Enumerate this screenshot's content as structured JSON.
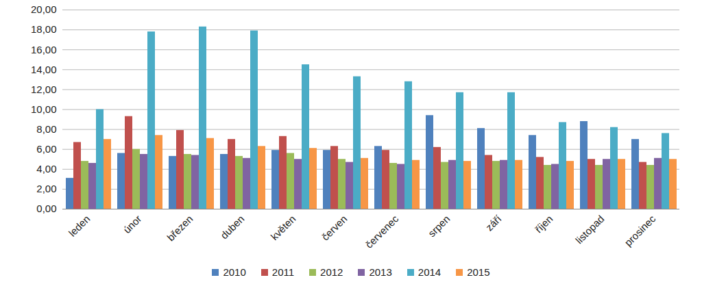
{
  "chart_data": {
    "type": "bar",
    "categories": [
      "leden",
      "únor",
      "březen",
      "duben",
      "květen",
      "červen",
      "červenec",
      "srpen",
      "září",
      "říjen",
      "listopad",
      "prosinec"
    ],
    "series": [
      {
        "name": "2010",
        "color": "#4f81bd",
        "values": [
          3.1,
          5.6,
          5.3,
          5.5,
          5.9,
          5.9,
          6.3,
          9.4,
          8.1,
          7.4,
          8.8,
          7.0
        ]
      },
      {
        "name": "2011",
        "color": "#c0504d",
        "values": [
          6.7,
          9.3,
          7.9,
          7.0,
          7.3,
          6.3,
          5.9,
          6.2,
          5.4,
          5.2,
          5.0,
          4.7
        ]
      },
      {
        "name": "2012",
        "color": "#9bbb59",
        "values": [
          4.8,
          6.0,
          5.5,
          5.3,
          5.6,
          5.0,
          4.6,
          4.7,
          4.8,
          4.4,
          4.4,
          4.4
        ]
      },
      {
        "name": "2013",
        "color": "#8064a2",
        "values": [
          4.6,
          5.5,
          5.4,
          5.1,
          5.0,
          4.7,
          4.5,
          4.9,
          4.9,
          4.5,
          5.0,
          5.1
        ]
      },
      {
        "name": "2014",
        "color": "#4bacc6",
        "values": [
          10.0,
          17.8,
          18.3,
          17.9,
          14.5,
          13.3,
          12.8,
          11.7,
          11.7,
          8.7,
          8.2,
          7.6
        ]
      },
      {
        "name": "2015",
        "color": "#f79646",
        "values": [
          7.0,
          7.4,
          7.1,
          6.3,
          6.1,
          5.1,
          4.9,
          4.8,
          4.9,
          4.8,
          5.0,
          5.0
        ]
      }
    ],
    "ylim": [
      0,
      20
    ],
    "yticks": [
      {
        "value": 0,
        "label": "0,00"
      },
      {
        "value": 2,
        "label": "2,00"
      },
      {
        "value": 4,
        "label": "4,00"
      },
      {
        "value": 6,
        "label": "6,00"
      },
      {
        "value": 8,
        "label": "8,00"
      },
      {
        "value": 10,
        "label": "10,00"
      },
      {
        "value": 12,
        "label": "12,00"
      },
      {
        "value": 14,
        "label": "14,00"
      },
      {
        "value": 16,
        "label": "16,00"
      },
      {
        "value": 18,
        "label": "18,00"
      },
      {
        "value": 20,
        "label": "20,00"
      }
    ],
    "grid": true,
    "legend": "bottom"
  }
}
